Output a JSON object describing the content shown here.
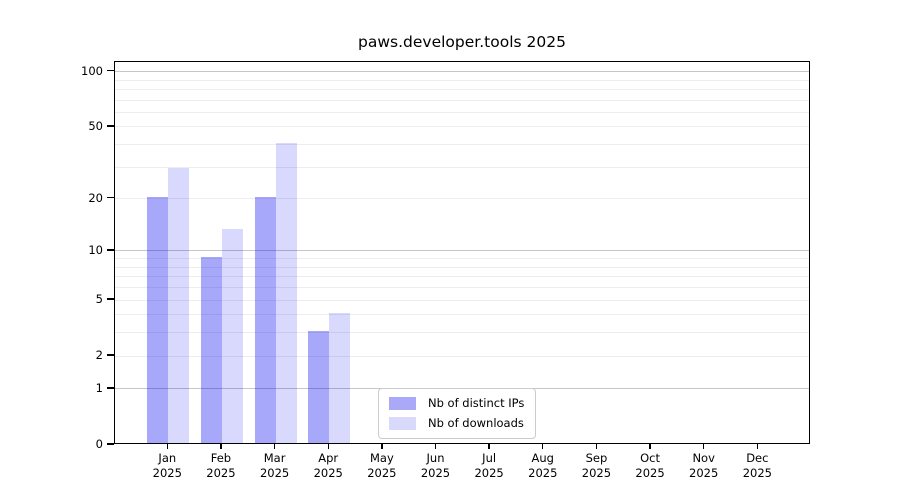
{
  "chart_data": {
    "type": "bar",
    "title": "paws.developer.tools 2025",
    "categories": [
      "Jan",
      "Feb",
      "Mar",
      "Apr",
      "May",
      "Jun",
      "Jul",
      "Aug",
      "Sep",
      "Oct",
      "Nov",
      "Dec"
    ],
    "x_tick_year": "2025",
    "series": [
      {
        "name": "Nb of distinct IPs",
        "color": "rgba(0,0,240,0.34)",
        "solid_color": "#a9a9f8",
        "values": [
          20,
          9,
          20,
          3,
          0,
          0,
          0,
          0,
          0,
          0,
          0,
          0
        ]
      },
      {
        "name": "Nb of downloads",
        "color": "rgba(0,0,240,0.15)",
        "solid_color": "#d8d9fb",
        "values": [
          29,
          13,
          40,
          4,
          0,
          0,
          0,
          0,
          0,
          0,
          0,
          0
        ]
      }
    ],
    "yscale": "log10(1+v)",
    "ylim": [
      0,
      112.7
    ],
    "y_tick_values": [
      0,
      1,
      2,
      5,
      10,
      20,
      50,
      100
    ],
    "y_major_gridlines": [
      1,
      10,
      100
    ],
    "y_minor_gridlines": [
      2,
      3,
      4,
      5,
      6,
      7,
      8,
      9,
      20,
      30,
      40,
      50,
      60,
      70,
      80,
      90
    ],
    "grid": true,
    "legend_position": "lower center"
  }
}
